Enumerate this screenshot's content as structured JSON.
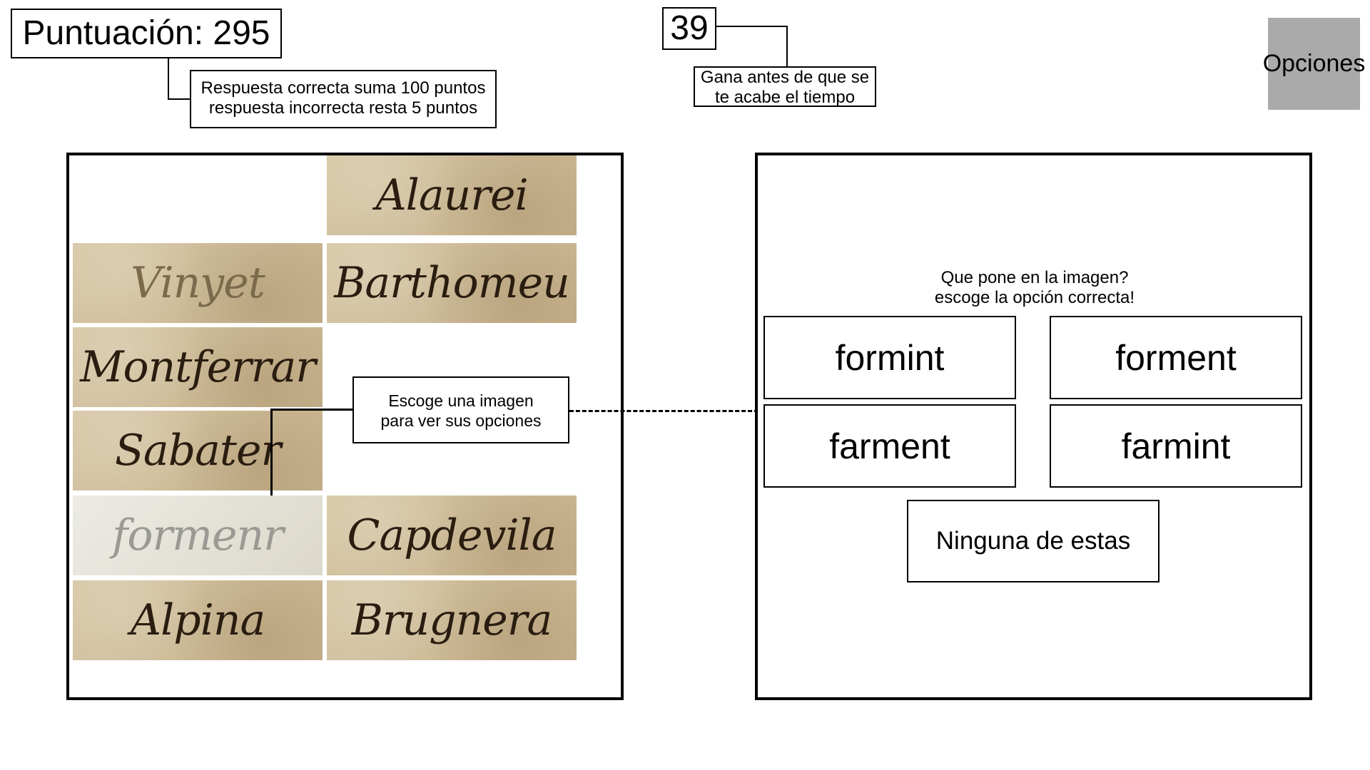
{
  "score": {
    "text": "Puntuación: 295",
    "note": "Respuesta correcta suma 100 puntos\nrespuesta incorrecta resta 5 puntos"
  },
  "timer": {
    "value": "39",
    "note": "Gana antes de que se\nte acabe el tiempo"
  },
  "options_button": {
    "label": "Opciones",
    "color": "#aaaaaa"
  },
  "images": [
    {
      "name": "Alaurei"
    },
    {
      "name": "Vinyet"
    },
    {
      "name": "Barthomeu"
    },
    {
      "name": "Montferrar"
    },
    {
      "name": "Sabater"
    },
    {
      "name": "formenr"
    },
    {
      "name": "Capdevila"
    },
    {
      "name": "Alpina"
    },
    {
      "name": "Brugnera"
    }
  ],
  "hint": "Escoge una imagen\npara ver sus opciones",
  "question": "Que pone en la imagen?\nescoge la opción correcta!",
  "answers": [
    "formint",
    "forment",
    "farment",
    "farmint"
  ],
  "none_option": "Ninguna de estas"
}
